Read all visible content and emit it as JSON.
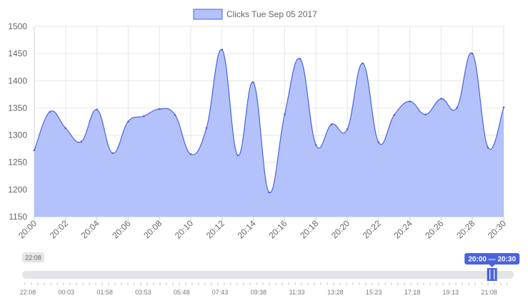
{
  "chart_data": {
    "type": "area",
    "legend": {
      "label": "Clicks Tue Sep 05 2017",
      "position": "top"
    },
    "series": [
      {
        "name": "Clicks Tue Sep 05 2017",
        "color": "#4a63dc",
        "fill": "#b3c2fb",
        "x": [
          "20:00",
          "20:01",
          "20:02",
          "20:03",
          "20:04",
          "20:05",
          "20:06",
          "20:07",
          "20:08",
          "20:09",
          "20:10",
          "20:11",
          "20:12",
          "20:13",
          "20:14",
          "20:15",
          "20:16",
          "20:17",
          "20:18",
          "20:19",
          "20:20",
          "20:21",
          "20:22",
          "20:23",
          "20:24",
          "20:25",
          "20:26",
          "20:27",
          "20:28",
          "20:29",
          "20:30"
        ],
        "values": [
          1272,
          1343,
          1313,
          1288,
          1347,
          1267,
          1325,
          1335,
          1348,
          1337,
          1265,
          1313,
          1457,
          1263,
          1397,
          1195,
          1338,
          1440,
          1282,
          1320,
          1311,
          1432,
          1287,
          1337,
          1362,
          1338,
          1367,
          1350,
          1450,
          1277,
          1351
        ]
      }
    ],
    "x_ticks": [
      "20:00",
      "20:02",
      "20:04",
      "20:06",
      "20:08",
      "20:10",
      "20:12",
      "20:14",
      "20:16",
      "20:18",
      "20:20",
      "20:22",
      "20:24",
      "20:26",
      "20:28",
      "20:30"
    ],
    "y_ticks": [
      1150,
      1200,
      1250,
      1300,
      1350,
      1400,
      1450,
      1500
    ],
    "ylim": [
      1150,
      1500
    ],
    "grid": true
  },
  "navigator": {
    "start_badge": "22:08",
    "range_label": "20:00 — 20:30",
    "range_fraction": 0.985,
    "accent": "#4a63dc",
    "track_color": "#e2e4e8",
    "ticks": [
      "22:08",
      "00:03",
      "01:58",
      "03:53",
      "05:48",
      "07:43",
      "09:38",
      "11:33",
      "13:28",
      "15:23",
      "17:18",
      "19:13",
      "21:08"
    ]
  }
}
